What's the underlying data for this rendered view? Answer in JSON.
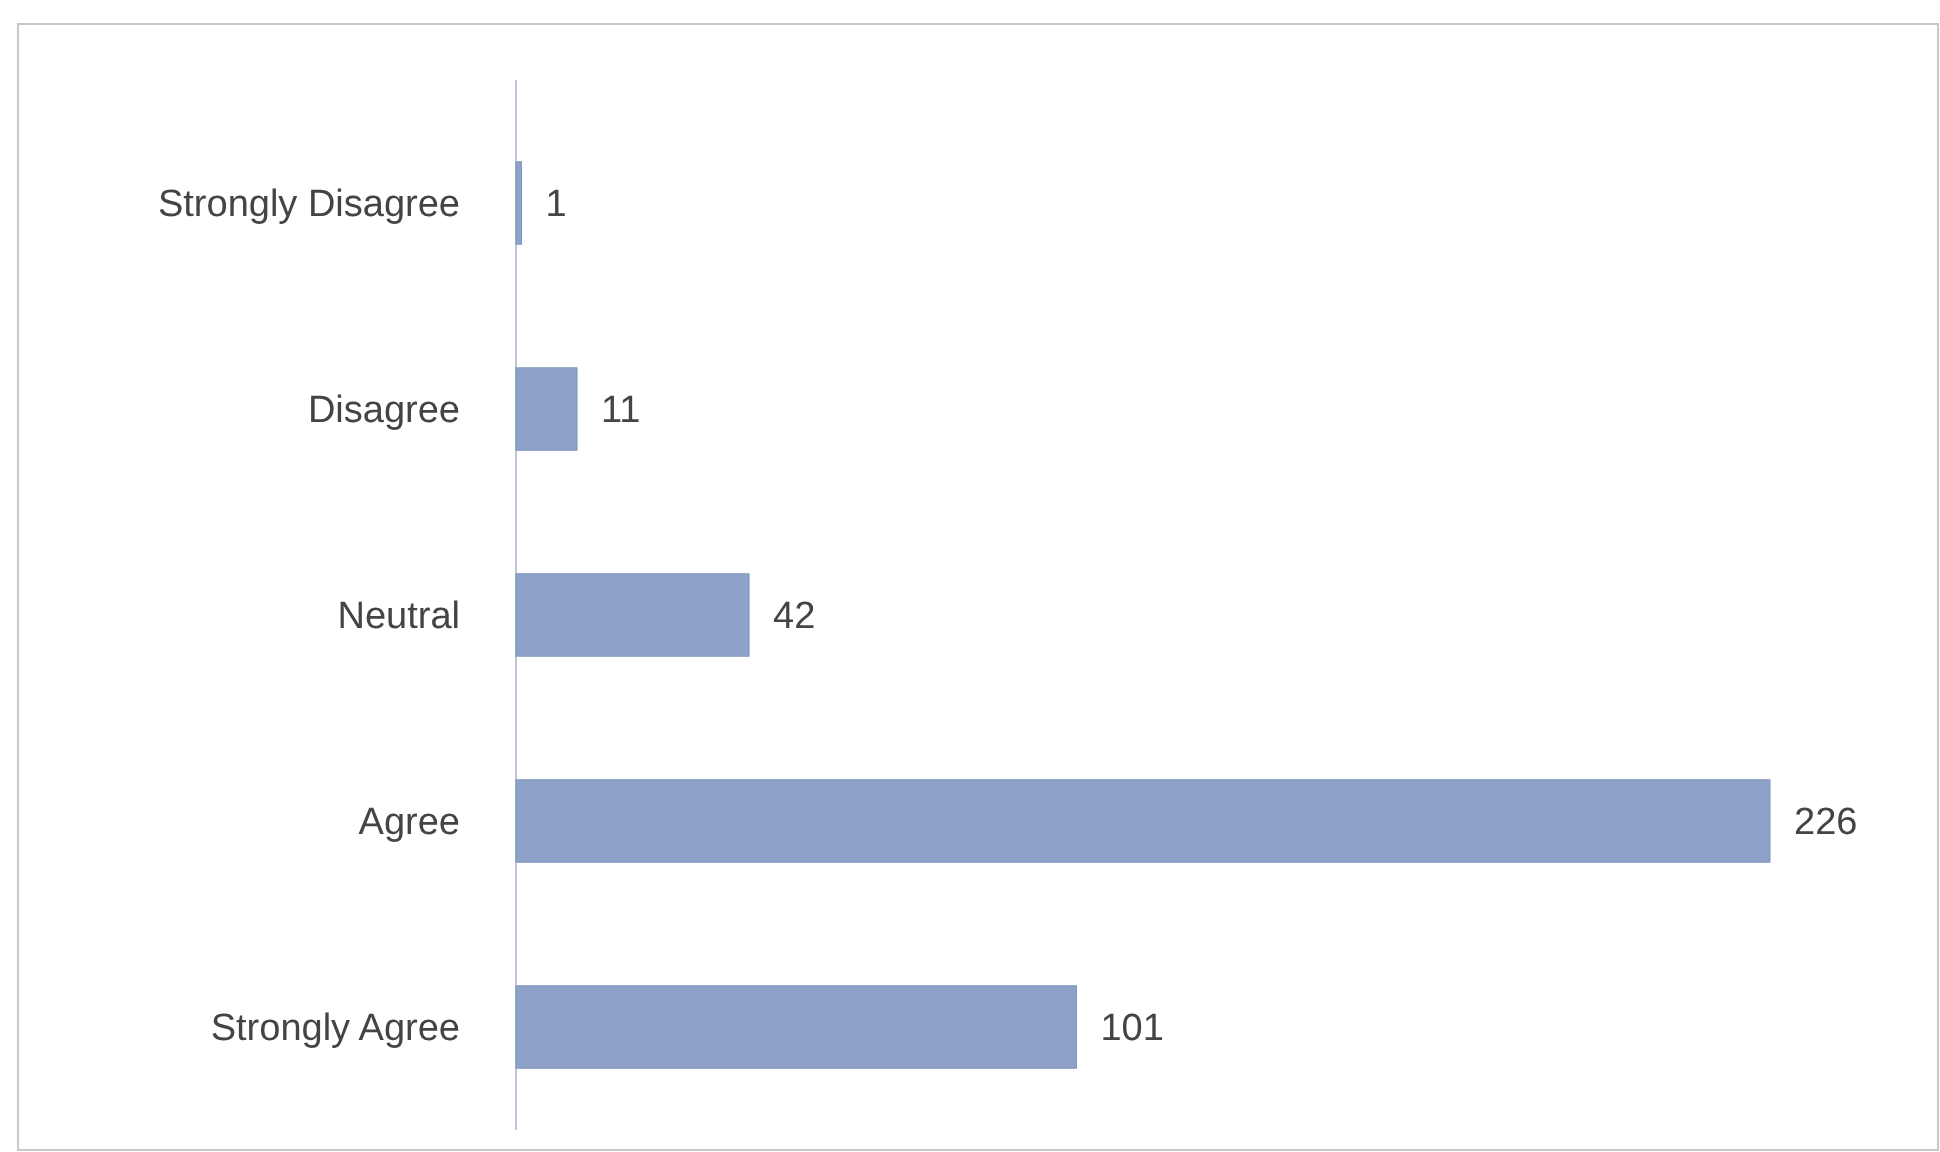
{
  "chart_data": {
    "type": "bar",
    "orientation": "horizontal",
    "categories": [
      "Strongly Disagree",
      "Disagree",
      "Neutral",
      "Agree",
      "Strongly Agree"
    ],
    "values": [
      1,
      11,
      42,
      226,
      101
    ],
    "color": "#8ea2c9",
    "data_labels": true
  }
}
